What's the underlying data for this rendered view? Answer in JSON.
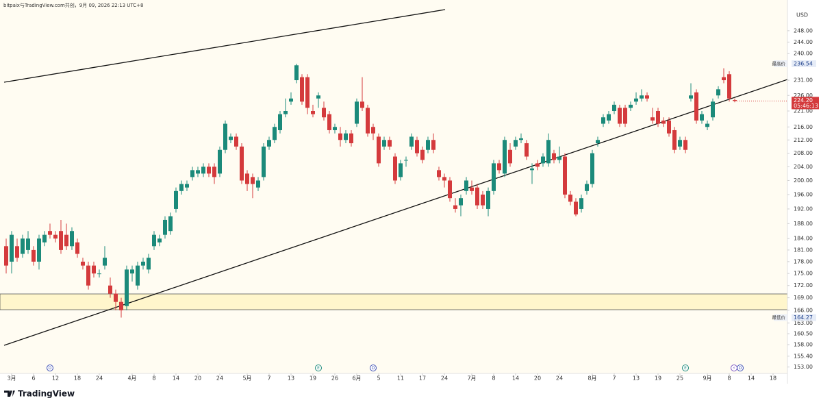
{
  "header": "bitpaix与TradingView.com共创，9月 09, 2026 22:13 UTC+8",
  "brand": "TradingView",
  "chart_data": {
    "type": "candlestick",
    "currency": "USD",
    "log_scale": true,
    "up_color": "#1b8a7a",
    "down_color": "#d43a3c",
    "ylim": [
      151.6,
      259.2
    ],
    "yticks": [
      {
        "value": 248,
        "label": "248.00"
      },
      {
        "value": 244,
        "label": "244.00"
      },
      {
        "value": 240,
        "label": "240.00"
      },
      {
        "value": 231,
        "label": "231.00"
      },
      {
        "value": 226,
        "label": "226.00"
      },
      {
        "value": 221,
        "label": "221.00"
      },
      {
        "value": 216,
        "label": "216.00"
      },
      {
        "value": 212,
        "label": "212.00"
      },
      {
        "value": 208,
        "label": "208.00"
      },
      {
        "value": 204,
        "label": "204.00"
      },
      {
        "value": 200,
        "label": "200.00"
      },
      {
        "value": 196,
        "label": "196.00"
      },
      {
        "value": 192,
        "label": "192.00"
      },
      {
        "value": 188,
        "label": "188.00"
      },
      {
        "value": 184,
        "label": "184.00"
      },
      {
        "value": 181,
        "label": "181.00"
      },
      {
        "value": 178,
        "label": "178.00"
      },
      {
        "value": 175,
        "label": "175.00"
      },
      {
        "value": 172,
        "label": "172.00"
      },
      {
        "value": 169,
        "label": "169.00"
      },
      {
        "value": 166,
        "label": "166.00"
      },
      {
        "value": 163,
        "label": "163.00"
      },
      {
        "value": 160.5,
        "label": "160.50"
      },
      {
        "value": 158,
        "label": "158.00"
      },
      {
        "value": 155.4,
        "label": "155.40"
      },
      {
        "value": 153,
        "label": "153.00"
      }
    ],
    "xlim": [
      -1.125,
      142.625
    ],
    "xticks": [
      {
        "value": 1,
        "label": "3月"
      },
      {
        "value": 5,
        "label": "6"
      },
      {
        "value": 9,
        "label": "12"
      },
      {
        "value": 13,
        "label": "18"
      },
      {
        "value": 17,
        "label": "24"
      },
      {
        "value": 23,
        "label": "4月"
      },
      {
        "value": 27,
        "label": "8"
      },
      {
        "value": 31,
        "label": "14"
      },
      {
        "value": 35,
        "label": "20"
      },
      {
        "value": 39,
        "label": "24"
      },
      {
        "value": 44,
        "label": "5月"
      },
      {
        "value": 48,
        "label": "7"
      },
      {
        "value": 52,
        "label": "13"
      },
      {
        "value": 56,
        "label": "19"
      },
      {
        "value": 60,
        "label": "26"
      },
      {
        "value": 64,
        "label": "6月"
      },
      {
        "value": 68,
        "label": "5"
      },
      {
        "value": 72,
        "label": "11"
      },
      {
        "value": 76,
        "label": "17"
      },
      {
        "value": 80,
        "label": "24"
      },
      {
        "value": 85,
        "label": "7月"
      },
      {
        "value": 89,
        "label": "8"
      },
      {
        "value": 93,
        "label": "14"
      },
      {
        "value": 97,
        "label": "20"
      },
      {
        "value": 101,
        "label": "24"
      },
      {
        "value": 107,
        "label": "8月"
      },
      {
        "value": 111,
        "label": "7"
      },
      {
        "value": 115,
        "label": "13"
      },
      {
        "value": 119,
        "label": "19"
      },
      {
        "value": 123,
        "label": "25"
      },
      {
        "value": 128,
        "label": "9月"
      },
      {
        "value": 132,
        "label": "8"
      },
      {
        "value": 136,
        "label": "14"
      },
      {
        "value": 140,
        "label": "18"
      }
    ],
    "ohlc": [
      [
        182,
        184,
        175,
        177
      ],
      [
        178,
        186,
        175,
        185
      ],
      [
        182,
        184,
        178,
        179
      ],
      [
        180,
        185,
        179,
        184
      ],
      [
        181,
        186,
        180,
        184
      ],
      [
        181,
        182,
        177,
        178
      ],
      [
        178,
        185,
        176,
        184
      ],
      [
        183,
        186,
        182,
        185
      ],
      [
        186,
        188,
        184,
        185
      ],
      [
        185,
        186,
        183,
        184
      ],
      [
        186,
        189,
        180,
        181
      ],
      [
        185,
        188,
        181,
        182
      ],
      [
        182,
        187,
        181,
        186
      ],
      [
        183,
        184,
        179,
        180
      ],
      [
        178,
        179,
        176,
        177
      ],
      [
        177,
        178,
        171,
        172
      ],
      [
        177,
        178,
        174,
        175
      ],
      [
        175,
        176,
        174,
        175
      ],
      [
        177,
        182,
        176,
        179
      ],
      [
        172,
        174,
        169,
        170
      ],
      [
        170,
        171,
        166,
        168
      ],
      [
        168,
        169,
        164.27,
        166
      ],
      [
        167,
        177,
        166,
        176
      ],
      [
        175,
        177,
        173,
        176
      ],
      [
        172,
        178,
        171,
        177
      ],
      [
        177,
        179,
        176,
        178
      ],
      [
        176,
        180,
        175,
        179
      ],
      [
        182,
        186,
        181,
        185
      ],
      [
        183,
        185,
        182,
        184
      ],
      [
        185,
        190,
        184,
        189
      ],
      [
        186,
        191,
        185,
        190
      ],
      [
        192,
        198,
        191,
        197
      ],
      [
        197,
        200,
        196,
        199
      ],
      [
        198,
        200,
        197,
        199
      ],
      [
        201,
        204,
        200,
        203
      ],
      [
        202,
        204,
        201,
        203
      ],
      [
        202,
        205,
        201,
        204
      ],
      [
        204,
        205,
        201,
        202
      ],
      [
        204,
        205,
        199,
        201
      ],
      [
        202,
        210,
        201,
        209
      ],
      [
        209,
        218,
        208,
        217
      ],
      [
        212,
        214,
        211,
        213
      ],
      [
        213,
        214,
        209,
        210
      ],
      [
        210,
        211,
        199,
        200
      ],
      [
        202,
        203,
        197,
        199
      ],
      [
        201,
        202,
        195,
        199
      ],
      [
        198,
        201,
        197,
        200
      ],
      [
        201,
        211,
        200,
        210
      ],
      [
        210,
        213,
        209,
        212
      ],
      [
        212,
        217,
        211,
        216
      ],
      [
        215,
        221,
        214,
        220
      ],
      [
        220,
        225,
        219,
        221
      ],
      [
        224,
        227,
        223,
        225
      ],
      [
        231,
        236.54,
        230,
        236
      ],
      [
        232,
        233,
        223,
        224
      ],
      [
        232,
        233,
        220,
        222
      ],
      [
        221,
        223,
        219,
        220
      ],
      [
        225,
        227,
        222,
        226
      ],
      [
        222,
        224,
        218,
        219
      ],
      [
        220,
        221,
        214,
        215
      ],
      [
        215,
        217,
        214,
        216
      ],
      [
        214,
        216,
        210,
        212
      ],
      [
        212,
        215,
        211,
        214
      ],
      [
        214,
        215,
        210,
        211
      ],
      [
        217,
        225,
        216,
        224
      ],
      [
        224,
        232,
        221,
        222
      ],
      [
        222,
        223,
        213,
        214
      ],
      [
        216,
        217,
        212,
        214
      ],
      [
        213,
        214,
        204,
        205
      ],
      [
        210,
        213,
        209,
        212
      ],
      [
        212,
        213,
        209,
        210
      ],
      [
        207,
        208,
        199,
        200
      ],
      [
        201,
        206,
        200,
        205
      ],
      [
        206,
        207,
        204,
        206
      ],
      [
        210,
        214,
        209,
        213
      ],
      [
        212,
        213,
        207,
        208
      ],
      [
        209,
        210,
        205,
        206
      ],
      [
        209,
        213,
        208,
        212
      ],
      [
        212,
        214,
        208,
        209
      ],
      [
        203,
        204,
        200,
        201
      ],
      [
        201,
        202,
        198,
        200
      ],
      [
        200,
        201,
        194,
        195
      ],
      [
        193,
        195,
        191,
        192
      ],
      [
        193,
        196,
        190,
        195
      ],
      [
        197,
        201,
        196,
        200
      ],
      [
        198,
        200,
        196,
        197
      ],
      [
        198,
        199,
        192,
        193
      ],
      [
        196,
        197,
        192,
        193
      ],
      [
        192,
        198,
        190,
        197
      ],
      [
        197,
        206,
        196,
        205
      ],
      [
        205,
        206,
        202,
        203
      ],
      [
        202,
        213,
        201,
        212
      ],
      [
        209,
        211,
        204,
        205
      ],
      [
        210,
        213,
        209,
        212
      ],
      [
        212,
        214,
        211,
        212.5
      ],
      [
        211,
        212,
        206,
        207
      ],
      [
        203,
        205,
        199,
        203.5
      ],
      [
        205,
        206,
        203,
        204
      ],
      [
        205,
        208,
        204,
        207
      ],
      [
        205,
        214,
        204,
        212
      ],
      [
        208,
        209,
        205,
        206
      ],
      [
        206,
        210,
        205,
        207
      ],
      [
        207,
        208,
        195,
        196
      ],
      [
        196,
        197,
        193,
        194
      ],
      [
        194,
        195,
        190,
        190.5
      ],
      [
        192,
        196,
        191,
        195
      ],
      [
        197,
        200,
        196,
        199
      ],
      [
        199,
        209,
        198,
        208
      ],
      [
        211,
        213,
        210,
        212
      ],
      [
        217,
        220,
        216,
        219
      ],
      [
        218,
        221,
        217,
        220
      ],
      [
        221,
        224,
        220,
        223
      ],
      [
        222,
        223,
        216,
        217
      ],
      [
        222,
        223,
        216,
        217
      ],
      [
        222,
        224,
        221,
        223
      ],
      [
        224,
        227,
        223,
        225
      ],
      [
        225,
        228,
        224,
        226
      ],
      [
        226,
        227,
        224,
        225
      ],
      [
        219,
        222,
        217,
        218
      ],
      [
        221,
        222,
        216,
        217
      ],
      [
        218,
        219,
        216,
        217
      ],
      [
        218,
        219,
        213,
        214
      ],
      [
        215,
        216,
        208,
        209
      ],
      [
        210,
        213,
        209,
        212
      ],
      [
        212,
        213,
        208,
        209
      ],
      [
        225,
        230,
        224,
        226
      ],
      [
        227,
        228,
        217,
        218
      ],
      [
        218,
        221,
        217,
        220
      ],
      [
        216,
        218,
        215,
        217
      ],
      [
        219,
        225,
        218,
        224
      ],
      [
        226,
        229,
        225,
        228
      ],
      [
        232,
        235,
        230,
        231
      ],
      [
        233,
        234,
        224,
        225
      ],
      [
        224.5,
        225,
        223.8,
        224.2
      ]
    ],
    "high_marker": {
      "label": "最高价",
      "value": 236.54
    },
    "low_marker": {
      "label": "最低价",
      "value": 164.27
    },
    "last_price": {
      "value": 224.2,
      "label": "224.20",
      "countdown": "05:46:13"
    },
    "events": [
      "D",
      "E",
      "D",
      "E",
      "⚡",
      "D"
    ]
  }
}
